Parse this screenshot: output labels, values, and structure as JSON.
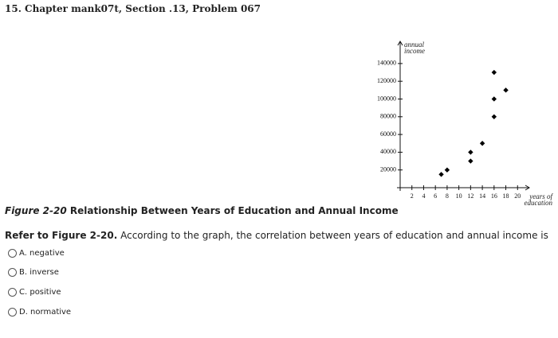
{
  "header": {
    "title": "15. Chapter mank07t, Section .13, Problem 067"
  },
  "chart_data": {
    "type": "scatter",
    "y_label": "annual income",
    "x_label": "years of education",
    "x": [
      7,
      8,
      12,
      12,
      14,
      16,
      16,
      16,
      18
    ],
    "series": [
      {
        "color": "#000000",
        "values": [
          15000,
          20000,
          40000,
          30000,
          50000,
          80000,
          100000,
          130000,
          110000
        ]
      }
    ],
    "xlim": [
      0,
      22
    ],
    "ylim": [
      0,
      165000
    ],
    "xticks": [
      2,
      4,
      6,
      8,
      10,
      12,
      14,
      16,
      18,
      20
    ],
    "yticks": [
      20000,
      40000,
      60000,
      80000,
      100000,
      120000,
      140000
    ]
  },
  "figure": {
    "label": "Figure 2-20",
    "caption": "Relationship Between Years of Education and Annual Income"
  },
  "question": {
    "reference": "Refer to Figure 2-20.",
    "text": "According to the graph, the correlation between years of education and annual income is"
  },
  "options": [
    "A. negative",
    "B. inverse",
    "C. positive",
    "D. normative"
  ]
}
